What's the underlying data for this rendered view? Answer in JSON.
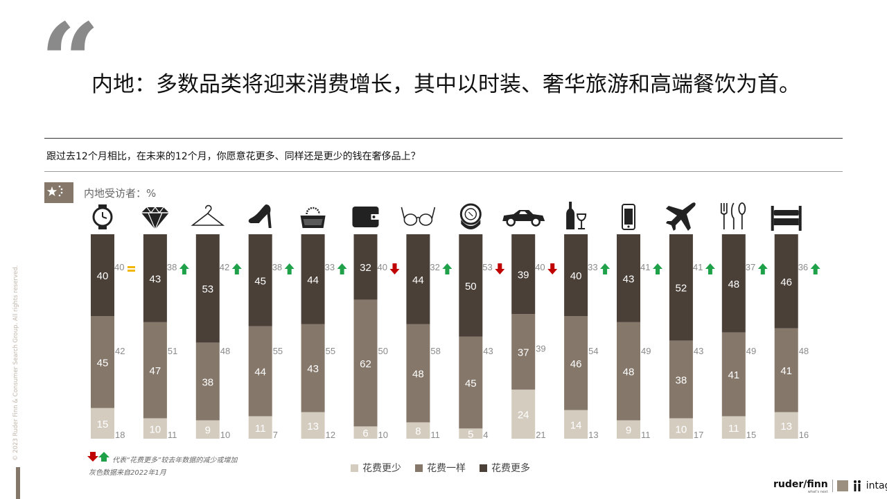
{
  "header": {
    "quote_mark": "“",
    "headline": "内地：多数品类将迎来消费增长，其中以时装、奢华旅游和高端餐饮为首。",
    "question": "跟过去12个月相比，在未来的12个月，你愿意花更多、同样还是更少的钱在奢侈品上？",
    "respondents_label": "内地受访者：%"
  },
  "footer": {
    "note_arrows": "代表“花费更多”较去年数据的减少或增加",
    "note_grey": "灰色数据来自2022年1月",
    "copyright": "© 2023 Ruder Finn & Consumer Search Group. All rights reserved.",
    "logo_ruderfinn": "ruder/finn",
    "logo_ruderfinn_tagline": "what's next",
    "logo_intage": "intage"
  },
  "colors": {
    "less": "#d5ccc0",
    "same": "#85786a",
    "more": "#4b4038",
    "up": "#1fa14a",
    "down": "#c00000",
    "equal": "#f2b600",
    "prev": "#8a8a8a"
  },
  "chart_data": {
    "type": "bar",
    "stacked": true,
    "unit": "%",
    "categories": [
      "watch-icon",
      "diamond-icon",
      "hanger-icon",
      "high-heel-icon",
      "handbag-icon",
      "wallet-icon",
      "glasses-icon",
      "compact-mirror-icon",
      "car-icon",
      "wine-icon",
      "phone-icon",
      "airplane-icon",
      "cutlery-icon",
      "bed-icon"
    ],
    "series": [
      {
        "name": "花费更少",
        "values": [
          15,
          10,
          9,
          11,
          13,
          6,
          8,
          5,
          24,
          14,
          9,
          10,
          11,
          13
        ]
      },
      {
        "name": "花费一样",
        "values": [
          45,
          47,
          38,
          44,
          43,
          62,
          48,
          45,
          37,
          46,
          48,
          38,
          41,
          41
        ]
      },
      {
        "name": "花费更多",
        "values": [
          40,
          43,
          53,
          45,
          44,
          32,
          44,
          50,
          39,
          40,
          43,
          52,
          48,
          46
        ]
      }
    ],
    "previous_year": {
      "less": [
        18,
        11,
        10,
        7,
        12,
        10,
        11,
        4,
        21,
        13,
        11,
        17,
        15,
        16
      ],
      "same": [
        42,
        51,
        48,
        55,
        55,
        50,
        58,
        43,
        39,
        54,
        49,
        43,
        49,
        48
      ],
      "more": [
        40,
        38,
        42,
        38,
        33,
        40,
        32,
        53,
        40,
        33,
        41,
        41,
        37,
        36
      ]
    },
    "trend": [
      "equal",
      "up",
      "up",
      "up",
      "up",
      "down",
      "up",
      "down",
      "down",
      "up",
      "up",
      "up",
      "up",
      "up"
    ],
    "ylim": [
      0,
      100
    ]
  }
}
